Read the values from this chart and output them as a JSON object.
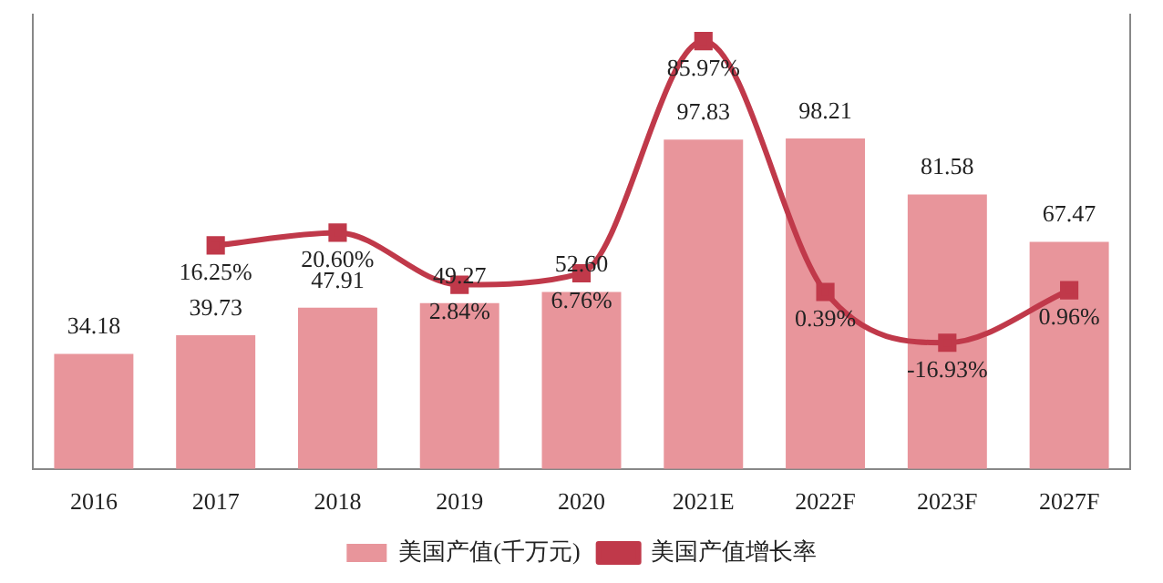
{
  "chart_data": {
    "type": "bar",
    "categories": [
      "2016",
      "2017",
      "2018",
      "2019",
      "2020",
      "2021E",
      "2022F",
      "2023F",
      "2027F"
    ],
    "series": [
      {
        "name": "美国产值(千万元)",
        "color": "#e8959b",
        "values": [
          34.18,
          39.73,
          47.91,
          49.27,
          52.6,
          97.83,
          98.21,
          81.58,
          67.47
        ],
        "value_labels": [
          "34.18",
          "39.73",
          "47.91",
          "49.27",
          "52.60",
          "97.83",
          "98.21",
          "81.58",
          "67.47"
        ]
      },
      {
        "name": "美国产值增长率",
        "type": "line",
        "axis": "y2",
        "color": "#c0394a",
        "marker": "square",
        "values": [
          null,
          16.25,
          20.6,
          2.84,
          6.76,
          85.97,
          0.39,
          -16.93,
          0.96
        ],
        "value_labels": [
          null,
          "16.25%",
          "20.60%",
          "2.84%",
          "6.76%",
          "85.97%",
          "0.39%",
          "-16.93%",
          "0.96%"
        ]
      }
    ],
    "ylim": [
      0,
      135
    ],
    "y2lim": [
      -60,
      95
    ],
    "tick_labels": "x",
    "grid": false,
    "legend": "bottom"
  }
}
